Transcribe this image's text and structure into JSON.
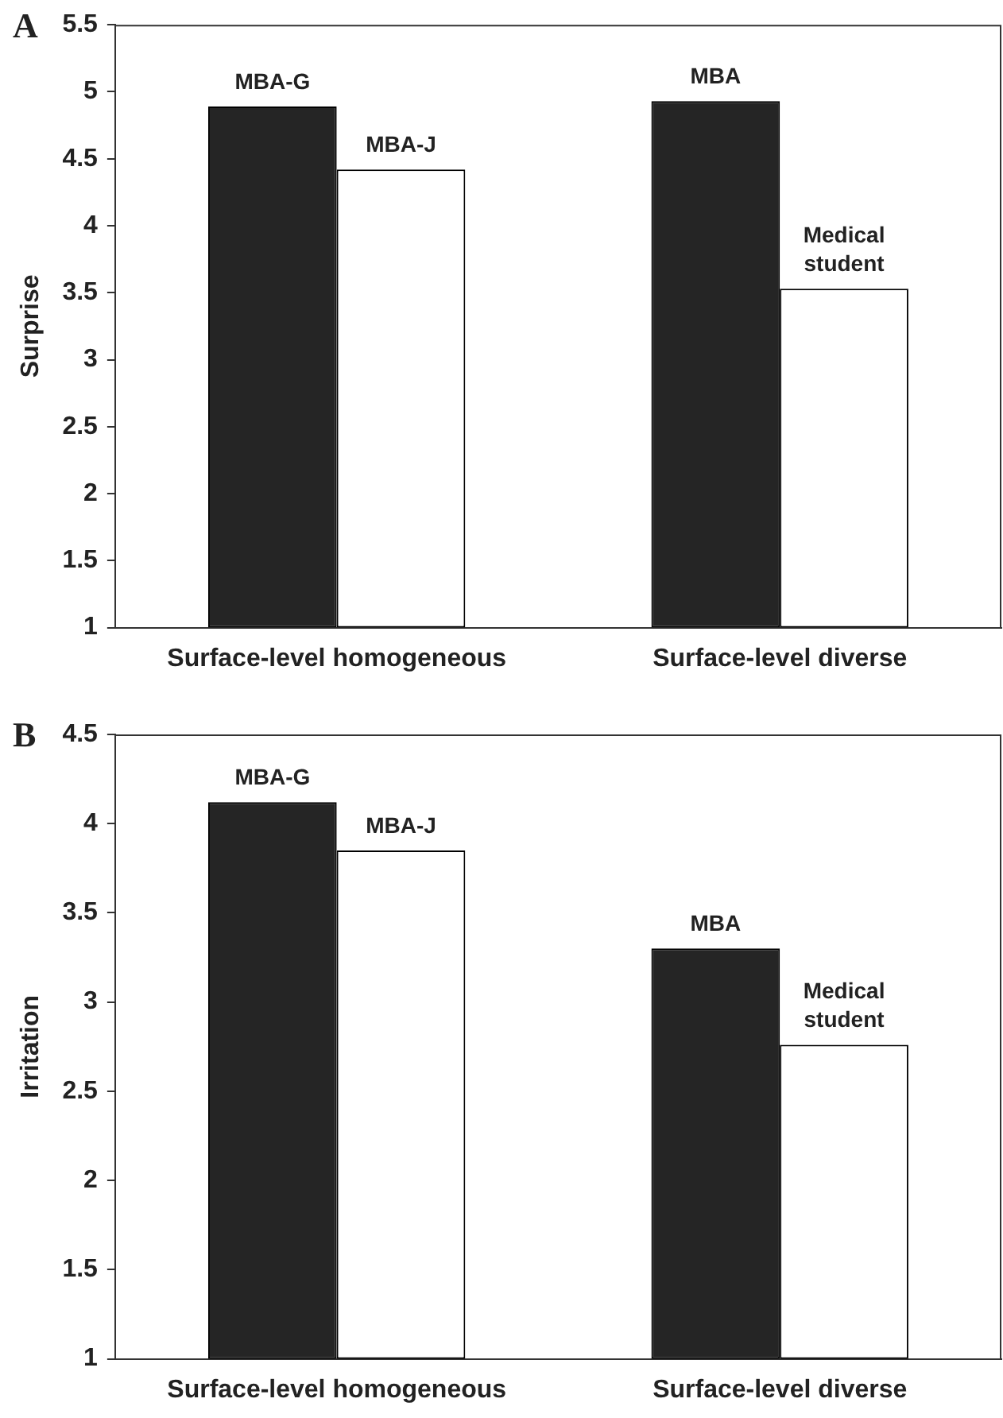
{
  "chart_data": [
    {
      "type": "bar",
      "title": "A",
      "ylabel": "Surprise",
      "categories": [
        "Surface-level homogeneous",
        "Surface-level diverse"
      ],
      "ylim": [
        1,
        5.5
      ],
      "yticks": [
        1,
        1.5,
        2,
        2.5,
        3,
        3.5,
        4,
        4.5,
        5,
        5.5
      ],
      "grid": false,
      "legend": false,
      "series": [
        {
          "color": "#252525",
          "values": [
            4.89,
            4.93
          ],
          "value_labels": [
            "MBA-G",
            "MBA"
          ]
        },
        {
          "color": "#ffffff",
          "values": [
            4.42,
            3.53
          ],
          "value_labels": [
            "MBA-J",
            "Medical student"
          ]
        }
      ]
    },
    {
      "type": "bar",
      "title": "B",
      "ylabel": "Irritation",
      "categories": [
        "Surface-level homogeneous",
        "Surface-level diverse"
      ],
      "ylim": [
        1,
        4.5
      ],
      "yticks": [
        1,
        1.5,
        2,
        2.5,
        3,
        3.5,
        4,
        4.5
      ],
      "grid": false,
      "legend": false,
      "series": [
        {
          "color": "#252525",
          "values": [
            4.12,
            3.3
          ],
          "value_labels": [
            "MBA-G",
            "MBA"
          ]
        },
        {
          "color": "#ffffff",
          "values": [
            3.85,
            2.76
          ],
          "value_labels": [
            "MBA-J",
            "Medical student"
          ]
        }
      ]
    }
  ]
}
